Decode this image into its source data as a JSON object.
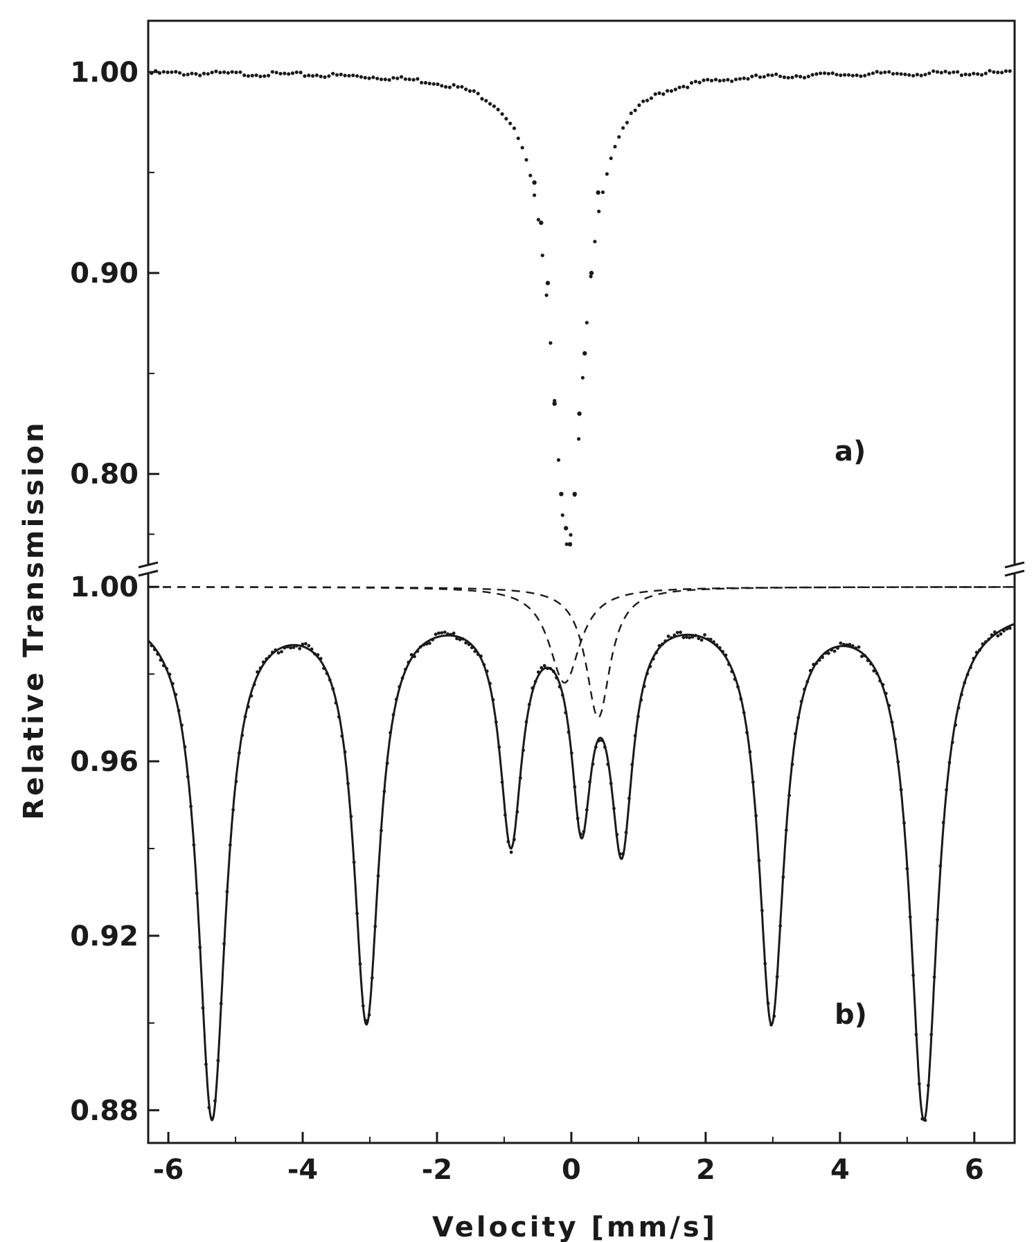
{
  "chart_data": {
    "type": "scatter",
    "xlabel": "Velocity  [mm/s]",
    "ylabel": "Relative   Transmission",
    "xlim": [
      -6.3,
      6.6
    ],
    "x_ticks": [
      -6,
      -4,
      -2,
      0,
      2,
      4,
      6
    ],
    "x_tick_labels": [
      "-6",
      "-4",
      "-2",
      "0",
      "2",
      "4",
      "6"
    ],
    "grid": false,
    "panels": [
      {
        "label": "a)",
        "ylim": [
          0.7525,
          1.0255
        ],
        "y_ticks": [
          1.0,
          0.9,
          0.8
        ],
        "y_tick_labels": [
          "1.00",
          "0.90",
          "0.80"
        ],
        "series": [
          {
            "style": "dotted-points",
            "model": "single Lorentzian absorption line",
            "baseline": 1.0,
            "center": -0.05,
            "hwhm": 0.3,
            "min_transmission": 0.765,
            "x": [
              -0.55,
              -0.45,
              -0.35,
              -0.25,
              -0.15,
              -0.08,
              -0.02,
              0.05,
              0.12,
              0.2,
              0.3,
              0.4
            ],
            "y": [
              0.945,
              0.925,
              0.895,
              0.835,
              0.79,
              0.773,
              0.765,
              0.79,
              0.83,
              0.86,
              0.9,
              0.94
            ]
          }
        ]
      },
      {
        "label": "b)",
        "ylim": [
          0.8725,
          1.004
        ],
        "y_ticks": [
          1.0,
          0.96,
          0.92,
          0.88
        ],
        "y_tick_labels": [
          "1.00",
          "0.96",
          "0.92",
          "0.88"
        ],
        "series": [
          {
            "style": "solid-fit-with-points",
            "model": "sextet plus doublet absorption lines",
            "baseline": 0.996,
            "peaks": [
              {
                "center": -5.35,
                "depth": 0.117,
                "hwhm": 0.25
              },
              {
                "center": -3.05,
                "depth": 0.094,
                "hwhm": 0.23
              },
              {
                "center": -0.9,
                "depth": 0.052,
                "hwhm": 0.2
              },
              {
                "center": 0.15,
                "depth": 0.045,
                "hwhm": 0.18
              },
              {
                "center": 0.75,
                "depth": 0.052,
                "hwhm": 0.2
              },
              {
                "center": 2.98,
                "depth": 0.094,
                "hwhm": 0.23
              },
              {
                "center": 5.25,
                "depth": 0.117,
                "hwhm": 0.25
              }
            ]
          },
          {
            "style": "dashed",
            "model": "component line",
            "baseline": 1.0,
            "center": -0.1,
            "depth": 0.022,
            "hwhm": 0.28
          },
          {
            "style": "dashed",
            "model": "component line",
            "baseline": 1.0,
            "center": 0.4,
            "depth": 0.03,
            "hwhm": 0.22
          }
        ]
      }
    ]
  }
}
